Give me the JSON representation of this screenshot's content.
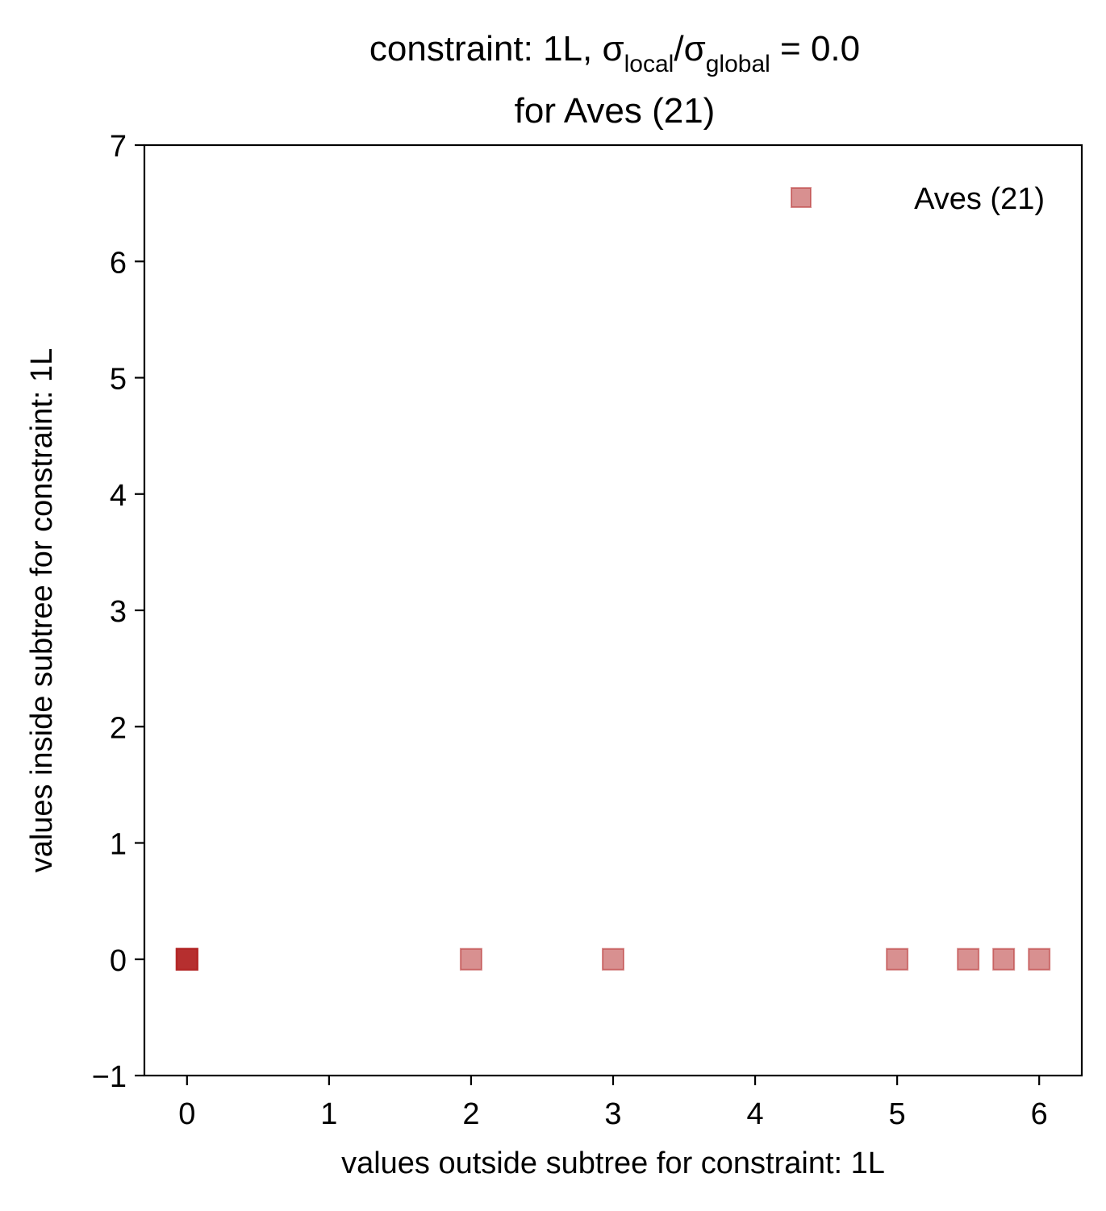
{
  "chart_data": {
    "type": "scatter",
    "title": {
      "line1_prefix": "constraint: 1L, σ",
      "line1_sub1": "local",
      "line1_mid": "/σ",
      "line1_sub2": "global",
      "line1_suffix": " =  0.0",
      "line2": "for Aves (21)"
    },
    "xlabel": "values outside subtree for constraint: 1L",
    "ylabel": "values inside subtree for constraint: 1L",
    "xlim": [
      -0.3,
      6.3
    ],
    "ylim": [
      -1,
      7
    ],
    "xticks": [
      0,
      1,
      2,
      3,
      4,
      5,
      6
    ],
    "xtick_labels": [
      "0",
      "1",
      "2",
      "3",
      "4",
      "5",
      "6"
    ],
    "yticks": [
      -1,
      0,
      1,
      2,
      3,
      4,
      5,
      6,
      7
    ],
    "ytick_labels": [
      "−1",
      "0",
      "1",
      "2",
      "3",
      "4",
      "5",
      "6",
      "7"
    ],
    "grid": false,
    "legend_position": "top-right",
    "series": [
      {
        "name": "Aves (21)",
        "marker": "square",
        "color": "#b22222",
        "alpha": 0.5,
        "points": [
          {
            "x": 0,
            "y": 0
          },
          {
            "x": 0,
            "y": 0
          },
          {
            "x": 0,
            "y": 0
          },
          {
            "x": 0,
            "y": 0
          },
          {
            "x": 2,
            "y": 0
          },
          {
            "x": 3,
            "y": 0
          },
          {
            "x": 5,
            "y": 0
          },
          {
            "x": 5.5,
            "y": 0
          },
          {
            "x": 5.75,
            "y": 0
          },
          {
            "x": 6,
            "y": 0
          }
        ]
      }
    ]
  }
}
